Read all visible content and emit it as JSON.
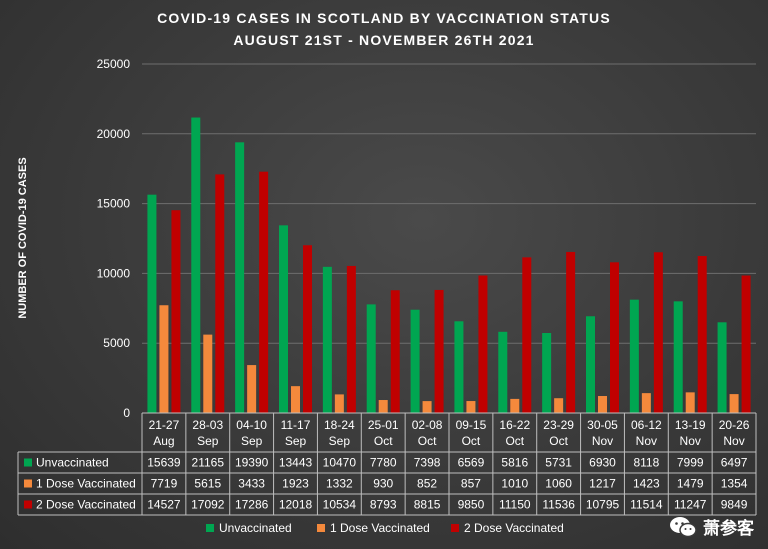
{
  "chart_data": {
    "type": "bar",
    "title": "COVID-19 CASES IN SCOTLAND BY VACCINATION STATUS",
    "subtitle": "AUGUST 21ST - NOVEMBER 26TH 2021",
    "ylabel": "NUMBER OF COVID-19 CASES",
    "xlabel": "",
    "ylim": [
      0,
      25000
    ],
    "yticks": [
      0,
      5000,
      10000,
      15000,
      20000,
      25000
    ],
    "yticklabels": [
      "0",
      "5000",
      "10000",
      "15000",
      "20000",
      "25000"
    ],
    "grid": true,
    "legend_position": "bottom",
    "categories": [
      [
        "21-27",
        "Aug"
      ],
      [
        "28-03",
        "Sep"
      ],
      [
        "04-10",
        "Sep"
      ],
      [
        "11-17",
        "Sep"
      ],
      [
        "18-24",
        "Sep"
      ],
      [
        "25-01",
        "Oct"
      ],
      [
        "02-08",
        "Oct"
      ],
      [
        "09-15",
        "Oct"
      ],
      [
        "16-22",
        "Oct"
      ],
      [
        "23-29",
        "Oct"
      ],
      [
        "30-05",
        "Nov"
      ],
      [
        "06-12",
        "Nov"
      ],
      [
        "13-19",
        "Nov"
      ],
      [
        "20-26",
        "Nov"
      ]
    ],
    "series": [
      {
        "name": "Unvaccinated",
        "color": "#00a651",
        "values": [
          15639,
          21165,
          19390,
          13443,
          10470,
          7780,
          7398,
          6569,
          5816,
          5731,
          6930,
          8118,
          7999,
          6497
        ]
      },
      {
        "name": "1 Dose Vaccinated",
        "color": "#f4893c",
        "values": [
          7719,
          5615,
          3433,
          1923,
          1332,
          930,
          852,
          857,
          1010,
          1060,
          1217,
          1423,
          1479,
          1354
        ]
      },
      {
        "name": "2 Dose Vaccinated",
        "color": "#c00000",
        "values": [
          14527,
          17092,
          17286,
          12018,
          10534,
          8793,
          8815,
          9850,
          11150,
          11536,
          10795,
          11514,
          11247,
          9849
        ]
      }
    ]
  },
  "watermark": {
    "text": "萧参客",
    "icon": "wechat-icon"
  }
}
